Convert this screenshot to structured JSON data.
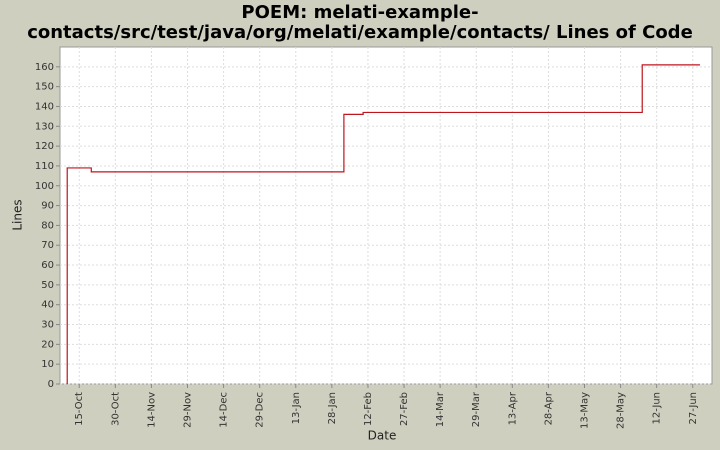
{
  "chart_data": {
    "type": "step",
    "title": [
      "POEM: melati-example-",
      "contacts/src/test/java/org/melati/example/contacts/ Lines of Code"
    ],
    "xlabel": "Date",
    "ylabel": "Lines",
    "x": [
      -5,
      -5,
      5,
      110,
      118,
      234,
      258
    ],
    "series": [
      {
        "name": "Lines",
        "color": "#c0141e",
        "values": [
          0,
          109,
          107,
          136,
          137,
          161,
          161
        ]
      }
    ],
    "xlim": [
      -8,
      263
    ],
    "ylim": [
      0,
      170
    ],
    "xticks": [
      {
        "value": 0,
        "label": "15-Oct"
      },
      {
        "value": 15,
        "label": "30-Oct"
      },
      {
        "value": 30,
        "label": "14-Nov"
      },
      {
        "value": 45,
        "label": "29-Nov"
      },
      {
        "value": 60,
        "label": "14-Dec"
      },
      {
        "value": 75,
        "label": "29-Dec"
      },
      {
        "value": 90,
        "label": "13-Jan"
      },
      {
        "value": 105,
        "label": "28-Jan"
      },
      {
        "value": 120,
        "label": "12-Feb"
      },
      {
        "value": 135,
        "label": "27-Feb"
      },
      {
        "value": 150,
        "label": "14-Mar"
      },
      {
        "value": 165,
        "label": "29-Mar"
      },
      {
        "value": 180,
        "label": "13-Apr"
      },
      {
        "value": 195,
        "label": "28-Apr"
      },
      {
        "value": 210,
        "label": "13-May"
      },
      {
        "value": 225,
        "label": "28-May"
      },
      {
        "value": 240,
        "label": "12-Jun"
      },
      {
        "value": 255,
        "label": "27-Jun"
      }
    ],
    "yticks": [
      0,
      10,
      20,
      30,
      40,
      50,
      60,
      70,
      80,
      90,
      100,
      110,
      120,
      130,
      140,
      150,
      160
    ],
    "grid": true
  }
}
